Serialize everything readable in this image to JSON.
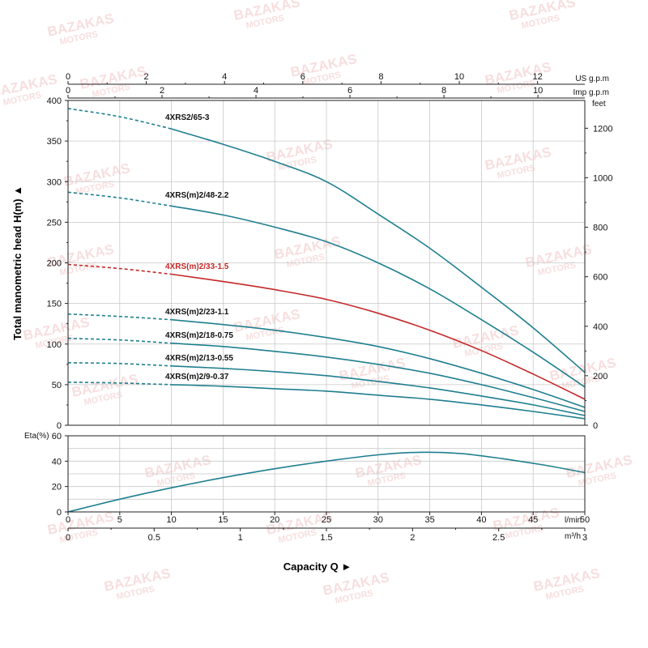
{
  "watermark": "BAZAKAS MOTORS",
  "colors": {
    "curve": "#1f7f8f",
    "highlight": "#c42828",
    "grid": "#c8c8c8",
    "frame": "#222222",
    "watermark": "#e9a3a3"
  },
  "axes": {
    "y_title": "Total manometric head H(m)",
    "y_ticks": [
      "0",
      "50",
      "100",
      "150",
      "200",
      "250",
      "300",
      "350",
      "400"
    ],
    "feet_unit": "feet",
    "feet_ticks": [
      "0",
      "200",
      "400",
      "600",
      "800",
      "1000",
      "1200"
    ],
    "usgpm_unit": "US g.p.m",
    "usgpm_ticks": [
      "0",
      "2",
      "4",
      "6",
      "8",
      "10",
      "12"
    ],
    "impgpm_unit": "Imp g.p.m",
    "impgpm_ticks": [
      "0",
      "2",
      "4",
      "6",
      "8",
      "10"
    ],
    "lmin_unit": "l/min",
    "lmin_ticks": [
      "0",
      "5",
      "10",
      "15",
      "20",
      "25",
      "30",
      "35",
      "40",
      "45",
      "50"
    ],
    "m3h_unit": "m³/h",
    "m3h_ticks": [
      "0",
      "0.5",
      "1",
      "1.5",
      "2",
      "2.5",
      "3"
    ],
    "eta_title": "Eta(%)",
    "eta_ticks": [
      "0",
      "20",
      "40",
      "60"
    ],
    "x_title": "Capacity Q"
  },
  "chart_data": [
    {
      "type": "line",
      "xlabel": "Capacity Q",
      "x_unit": "l/min",
      "ylabel": "Total manometric head H(m)",
      "xlim": [
        0,
        50
      ],
      "ylim": [
        0,
        400
      ],
      "secondary_y": {
        "unit": "feet",
        "ticks": [
          0,
          200,
          400,
          600,
          800,
          1000,
          1200
        ]
      },
      "secondary_x": [
        {
          "unit": "US g.p.m",
          "ticks": [
            0,
            2,
            4,
            6,
            8,
            10,
            12
          ]
        },
        {
          "unit": "Imp g.p.m",
          "ticks": [
            0,
            2,
            4,
            6,
            8,
            10
          ]
        },
        {
          "unit": "m³/h",
          "ticks": [
            0,
            0.5,
            1,
            1.5,
            2,
            2.5,
            3
          ]
        }
      ],
      "grid": true,
      "dashed_below_x": 10,
      "series": [
        {
          "name": "4XRS2/65-3",
          "highlight": false,
          "x": [
            0,
            5,
            10,
            15,
            20,
            25,
            30,
            35,
            40,
            45,
            50
          ],
          "y": [
            390,
            380,
            365,
            346,
            325,
            300,
            260,
            218,
            170,
            120,
            65
          ]
        },
        {
          "name": "4XRS(m)2/48-2.2",
          "highlight": false,
          "x": [
            0,
            5,
            10,
            15,
            20,
            25,
            30,
            35,
            40,
            45,
            50
          ],
          "y": [
            287,
            280,
            270,
            259,
            244,
            226,
            200,
            168,
            130,
            90,
            47
          ]
        },
        {
          "name": "4XRS(m)2/33-1.5",
          "highlight": true,
          "x": [
            0,
            5,
            10,
            15,
            20,
            25,
            30,
            35,
            40,
            45,
            50
          ],
          "y": [
            198,
            193,
            186,
            177,
            167,
            155,
            138,
            117,
            92,
            63,
            32
          ]
        },
        {
          "name": "4XRS(m)2/23-1.1",
          "highlight": false,
          "x": [
            0,
            5,
            10,
            15,
            20,
            25,
            30,
            35,
            40,
            45,
            50
          ],
          "y": [
            137,
            134,
            130,
            124,
            117,
            108,
            97,
            82,
            64,
            44,
            22
          ]
        },
        {
          "name": "4XRS(m)2/18-0.75",
          "highlight": false,
          "x": [
            0,
            5,
            10,
            15,
            20,
            25,
            30,
            35,
            40,
            45,
            50
          ],
          "y": [
            107,
            105,
            101,
            97,
            91,
            84,
            75,
            64,
            50,
            34,
            17
          ]
        },
        {
          "name": "4XRS(m)2/13-0.55",
          "highlight": false,
          "x": [
            0,
            5,
            10,
            15,
            20,
            25,
            30,
            35,
            40,
            45,
            50
          ],
          "y": [
            77,
            76,
            73,
            70,
            66,
            61,
            54,
            46,
            36,
            25,
            12
          ]
        },
        {
          "name": "4XRS(m)2/9-0.37",
          "highlight": false,
          "x": [
            0,
            5,
            10,
            15,
            20,
            25,
            30,
            35,
            40,
            45,
            50
          ],
          "y": [
            53,
            52,
            50,
            48,
            45,
            42,
            37,
            32,
            25,
            17,
            8
          ]
        }
      ]
    },
    {
      "type": "line",
      "ylabel": "Eta(%)",
      "xlim": [
        0,
        50
      ],
      "ylim": [
        0,
        60
      ],
      "grid": true,
      "series": [
        {
          "x": [
            0,
            5,
            10,
            15,
            20,
            25,
            30,
            34,
            38,
            42,
            46,
            50
          ],
          "y": [
            0,
            10,
            19,
            27,
            34,
            40,
            45,
            47,
            46,
            42,
            37,
            31
          ]
        }
      ]
    }
  ]
}
